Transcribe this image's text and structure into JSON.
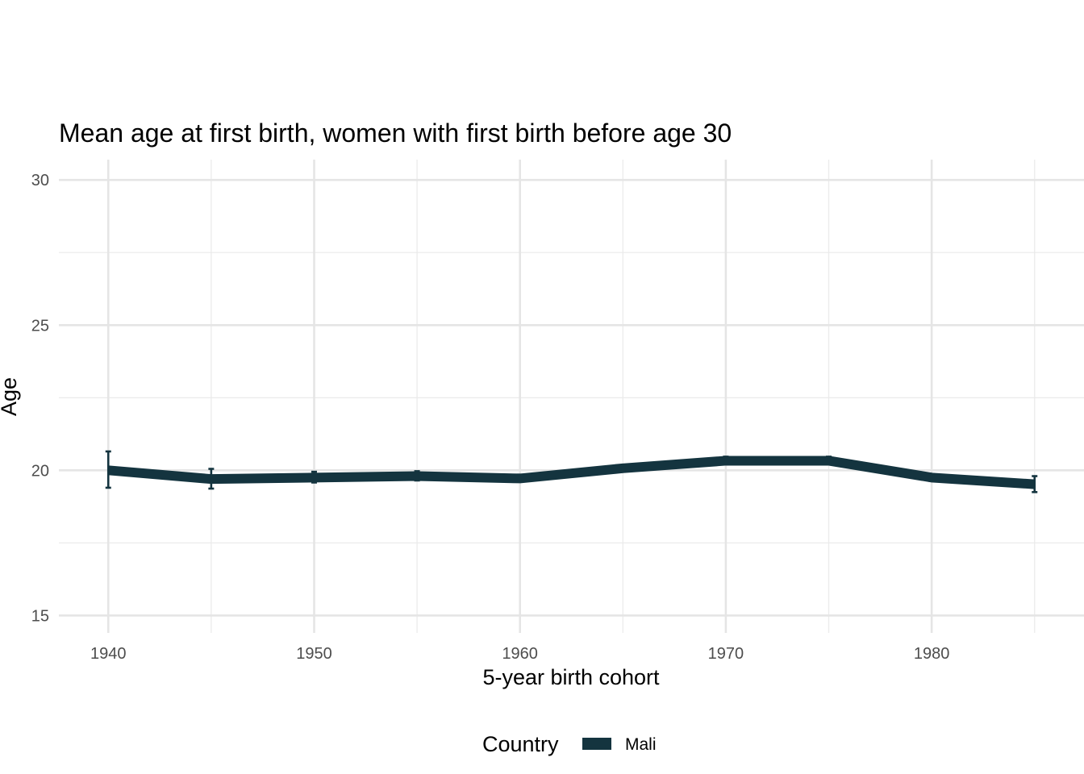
{
  "chart_data": {
    "type": "line",
    "title": "Mean age at first birth, women with first birth before age 30",
    "xlabel": "5-year birth cohort",
    "ylabel": "Age",
    "x": [
      1940,
      1945,
      1950,
      1955,
      1960,
      1965,
      1970,
      1975,
      1980,
      1985
    ],
    "xlim": [
      1937.6,
      1987.4
    ],
    "ylim": [
      14.4,
      30.7
    ],
    "x_ticks": [
      1940,
      1950,
      1960,
      1970,
      1980
    ],
    "y_ticks": [
      15,
      20,
      25,
      30
    ],
    "series": [
      {
        "name": "Mali",
        "color": "#14343f",
        "values": [
          20.0,
          19.7,
          19.75,
          19.8,
          19.72,
          20.07,
          20.33,
          20.33,
          19.75,
          19.52
        ],
        "error_low": [
          19.4,
          19.37,
          19.58,
          19.65,
          19.62,
          19.97,
          20.2,
          20.22,
          19.63,
          19.25
        ],
        "error_high": [
          20.65,
          20.05,
          19.95,
          19.97,
          19.85,
          20.18,
          20.47,
          20.47,
          19.87,
          19.8
        ]
      }
    ],
    "grid": true,
    "legend": {
      "position": "bottom",
      "title": "Country"
    }
  }
}
